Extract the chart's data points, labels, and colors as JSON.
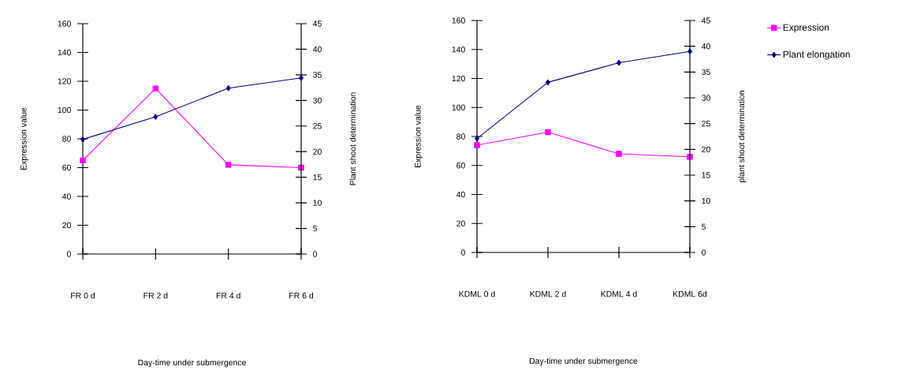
{
  "chart_data": [
    {
      "type": "line",
      "categories": [
        "FR 0 d",
        "FR 2 d",
        "FR 4 d",
        "FR 6 d"
      ],
      "xlabel": "Day-time under submergence",
      "ylabel": "Expression value",
      "y2label": "Plant shoot determination",
      "ylim": [
        0,
        160
      ],
      "yticks": [
        0,
        20,
        40,
        60,
        80,
        100,
        120,
        140,
        160
      ],
      "y2lim": [
        0,
        45
      ],
      "y2ticks": [
        0,
        5,
        10,
        15,
        20,
        25,
        30,
        35,
        40,
        45
      ],
      "series": [
        {
          "color": "#ff00ff",
          "marker": "square",
          "values": [
            65,
            115,
            62,
            60
          ]
        },
        {
          "color": "#000080",
          "marker": "diamond",
          "axis": "y2",
          "values": [
            22.4,
            26.8,
            32.4,
            34.4
          ]
        }
      ]
    },
    {
      "type": "line",
      "categories": [
        "KDML 0 d",
        "KDML 2 d",
        "KDML 4 d",
        "KDML 6d"
      ],
      "xlabel": "Day-time under submergence",
      "ylabel": "Expression value",
      "y2label": "plant shoot determination",
      "ylim": [
        0,
        160
      ],
      "yticks": [
        0,
        20,
        40,
        60,
        80,
        100,
        120,
        140,
        160
      ],
      "y2lim": [
        0,
        45
      ],
      "y2ticks": [
        0,
        5,
        10,
        15,
        20,
        25,
        30,
        35,
        40,
        45
      ],
      "legend": "right",
      "series": [
        {
          "name": "Expression",
          "color": "#ff00ff",
          "marker": "square",
          "values": [
            74,
            83,
            68,
            66
          ]
        },
        {
          "name": "Plant elongation",
          "color": "#000080",
          "marker": "diamond",
          "axis": "y2",
          "values": [
            22.1,
            33.0,
            36.8,
            39.0
          ]
        }
      ]
    }
  ]
}
